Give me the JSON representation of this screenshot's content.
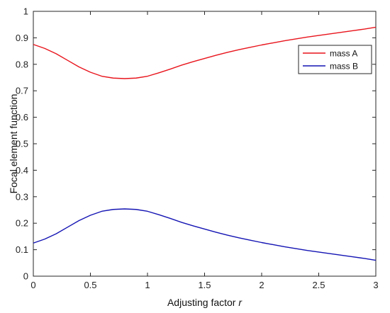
{
  "chart_data": {
    "type": "line",
    "title": "",
    "xlabel_text": "Adjusting factor ",
    "xlabel_var": "r",
    "ylabel": "Focal element function",
    "xlim": [
      0,
      3
    ],
    "ylim": [
      0,
      1
    ],
    "x_ticks": [
      0,
      0.5,
      1,
      1.5,
      2,
      2.5,
      3
    ],
    "x_tick_labels": [
      "0",
      "0.5",
      "1",
      "1.5",
      "2",
      "2.5",
      "3"
    ],
    "y_ticks": [
      0,
      0.1,
      0.2,
      0.3,
      0.4,
      0.5,
      0.6,
      0.7,
      0.8,
      0.9,
      1
    ],
    "y_tick_labels": [
      "0",
      "0.1",
      "0.2",
      "0.3",
      "0.4",
      "0.5",
      "0.6",
      "0.7",
      "0.8",
      "0.9",
      "1"
    ],
    "grid": false,
    "legend_position": "top-right",
    "x": [
      0,
      0.1,
      0.2,
      0.3,
      0.4,
      0.5,
      0.6,
      0.7,
      0.8,
      0.9,
      1.0,
      1.1,
      1.2,
      1.3,
      1.4,
      1.5,
      1.6,
      1.7,
      1.8,
      1.9,
      2.0,
      2.1,
      2.2,
      2.3,
      2.4,
      2.5,
      2.6,
      2.7,
      2.8,
      2.9,
      3.0
    ],
    "series": [
      {
        "name": "mass A",
        "color": "#e8141c",
        "values": [
          0.875,
          0.86,
          0.84,
          0.815,
          0.79,
          0.77,
          0.755,
          0.748,
          0.746,
          0.748,
          0.755,
          0.768,
          0.782,
          0.797,
          0.81,
          0.822,
          0.834,
          0.845,
          0.855,
          0.864,
          0.873,
          0.881,
          0.889,
          0.896,
          0.903,
          0.909,
          0.915,
          0.921,
          0.927,
          0.933,
          0.94
        ]
      },
      {
        "name": "mass B",
        "color": "#1414b4",
        "values": [
          0.125,
          0.14,
          0.16,
          0.185,
          0.21,
          0.23,
          0.245,
          0.252,
          0.254,
          0.252,
          0.245,
          0.232,
          0.218,
          0.203,
          0.19,
          0.178,
          0.166,
          0.155,
          0.145,
          0.136,
          0.127,
          0.119,
          0.111,
          0.104,
          0.097,
          0.091,
          0.085,
          0.079,
          0.073,
          0.067,
          0.06
        ]
      }
    ]
  }
}
